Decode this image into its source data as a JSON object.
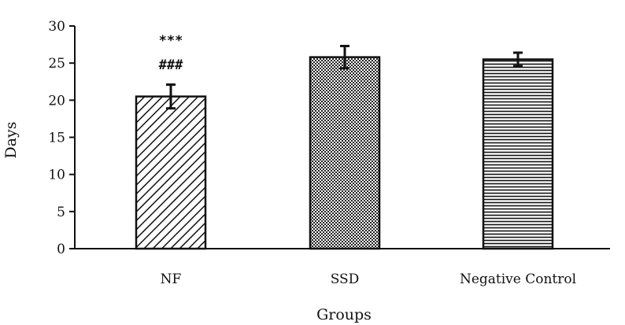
{
  "chart_data": {
    "type": "bar",
    "title": "",
    "xlabel": "Groups",
    "ylabel": "Days",
    "categories": [
      "NF",
      "SSD",
      "Negative Control"
    ],
    "values": [
      20.5,
      25.8,
      25.5
    ],
    "errors": [
      1.6,
      1.5,
      0.9
    ],
    "bar_patterns": [
      "diagonal-hatch",
      "crosshatch-dots",
      "horizontal-lines"
    ],
    "annotations": [
      {
        "category": "NF",
        "lines": [
          "***",
          "###"
        ]
      }
    ],
    "ylim": [
      0,
      30
    ],
    "yticks": [
      0,
      5,
      10,
      15,
      20,
      25,
      30
    ],
    "grid": false,
    "legend": "none"
  }
}
